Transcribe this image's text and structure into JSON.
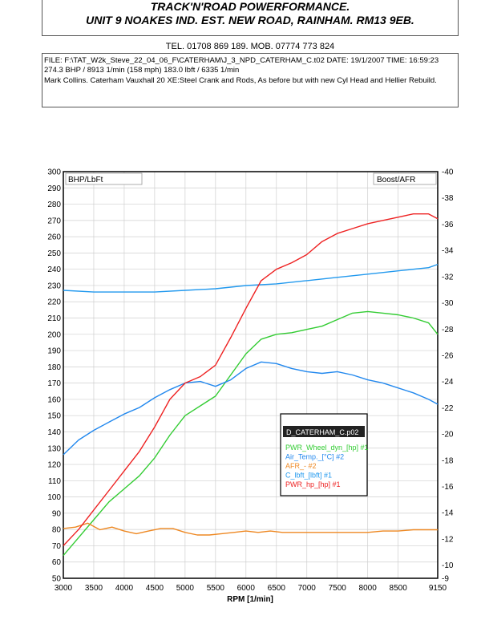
{
  "header": {
    "company_name": "TRACK'N'ROAD POWERFORMANCE.",
    "address": "UNIT 9 NOAKES IND. EST. NEW ROAD, RAINHAM. RM13 9EB.",
    "contact": "TEL. 01708 869 189. MOB. 07774 773 824"
  },
  "run_info": {
    "file_line": "FILE: F:\\TAT_W2k_Steve_22_04_06_F\\CATERHAM\\J_3_NPD_CATERHAM_C.t02  DATE: 19/1/2007  TIME: 16:59:23",
    "result_line": "274.3 BHP / 8913 1/min (158 mph)    183.0 lbft / 6335 1/min",
    "notes_line": "Mark Collins. Caterham Vauxhall 20 XE:Steel Crank and Rods, As before but with new Cyl Head and Hellier Rebuild."
  },
  "chart_data": {
    "type": "line",
    "xlabel": "RPM  [1/min]",
    "ylabel_left": "BHP/LbFt",
    "ylabel_right": "Boost/AFR",
    "xlim": [
      3000,
      9150
    ],
    "ylim_left": [
      50,
      300
    ],
    "ylim_right": [
      -9,
      -40
    ],
    "x_ticks": [
      "3000",
      "3500",
      "4000",
      "4500",
      "5000",
      "5500",
      "6000",
      "6500",
      "7000",
      "7500",
      "8000",
      "8500",
      "9150"
    ],
    "y_left_ticks": [
      "300",
      "290",
      "280",
      "270",
      "260",
      "250",
      "240",
      "230",
      "220",
      "210",
      "200",
      "190",
      "180",
      "170",
      "160",
      "150",
      "140",
      "130",
      "120",
      "110",
      "100",
      "90",
      "80",
      "70",
      "60",
      "50"
    ],
    "y_right_ticks": [
      "-40",
      "-38",
      "-36",
      "-34",
      "-32",
      "-30",
      "-28",
      "-26",
      "-24",
      "-22",
      "-20",
      "-18",
      "-16",
      "-14",
      "-12",
      "-10",
      "-9"
    ],
    "grid": true,
    "legend": {
      "title": "D_CATERHAM_C.p02",
      "position": "center-right"
    },
    "series": [
      {
        "name": "PWR_Wheel_dyn_[hp] #1",
        "color": "#33cc33",
        "x": [
          3000,
          3250,
          3500,
          3750,
          4000,
          4250,
          4500,
          4750,
          5000,
          5250,
          5500,
          5750,
          6000,
          6250,
          6500,
          6750,
          7000,
          7250,
          7500,
          7750,
          8000,
          8250,
          8500,
          8750,
          9000,
          9150
        ],
        "y": [
          64,
          75,
          86,
          97,
          105,
          113,
          124,
          138,
          150,
          156,
          162,
          175,
          188,
          197,
          200,
          201,
          203,
          205,
          209,
          213,
          214,
          213,
          212,
          210,
          207,
          200
        ]
      },
      {
        "name": "Air_Temp._[°C] #2",
        "color": "#2288ee",
        "x": [
          3000,
          3250,
          3500,
          3750,
          4000,
          4250,
          4500,
          4750,
          5000,
          5250,
          5500,
          5750,
          6000,
          6250,
          6500,
          6750,
          7000,
          7250,
          7500,
          7750,
          8000,
          8250,
          8500,
          8750,
          9000,
          9150
        ],
        "y": [
          126,
          135,
          141,
          146,
          151,
          155,
          161,
          166,
          170,
          171,
          168,
          172,
          179,
          183,
          182,
          179,
          177,
          176,
          177,
          175,
          172,
          170,
          167,
          164,
          160,
          157
        ]
      },
      {
        "name": "AFR_- #2",
        "color": "#ee8822",
        "x": [
          3000,
          3200,
          3400,
          3600,
          3800,
          4000,
          4200,
          4400,
          4600,
          4800,
          5000,
          5200,
          5400,
          5600,
          5800,
          6000,
          6200,
          6400,
          6600,
          6800,
          7000,
          7250,
          7500,
          7750,
          8000,
          8250,
          8500,
          8750,
          9000,
          9150
        ],
        "y": [
          12.8,
          12.9,
          13.2,
          12.7,
          12.9,
          12.6,
          12.4,
          12.6,
          12.8,
          12.8,
          12.5,
          12.3,
          12.3,
          12.4,
          12.5,
          12.6,
          12.5,
          12.6,
          12.5,
          12.5,
          12.5,
          12.5,
          12.5,
          12.5,
          12.5,
          12.6,
          12.6,
          12.7,
          12.7,
          12.7
        ]
      },
      {
        "name": "C_lbft_[lbft] #1",
        "color": "#2299ee",
        "x": [
          3000,
          3500,
          4000,
          4500,
          5000,
          5500,
          6000,
          6500,
          7000,
          7500,
          8000,
          8500,
          9000,
          9150
        ],
        "y": [
          227,
          226,
          226,
          226,
          227,
          228,
          230,
          231,
          233,
          235,
          237,
          239,
          241,
          243
        ]
      },
      {
        "name": "PWR_hp_[hp] #1",
        "color": "#ee2222",
        "x": [
          3000,
          3250,
          3500,
          3750,
          4000,
          4250,
          4500,
          4750,
          5000,
          5250,
          5500,
          5750,
          6000,
          6250,
          6500,
          6750,
          7000,
          7250,
          7500,
          7750,
          8000,
          8250,
          8500,
          8750,
          9000,
          9150
        ],
        "y": [
          70,
          80,
          92,
          104,
          116,
          128,
          143,
          160,
          170,
          174,
          181,
          198,
          216,
          233,
          240,
          244,
          249,
          257,
          262,
          265,
          268,
          270,
          272,
          274,
          274,
          271
        ]
      }
    ]
  }
}
